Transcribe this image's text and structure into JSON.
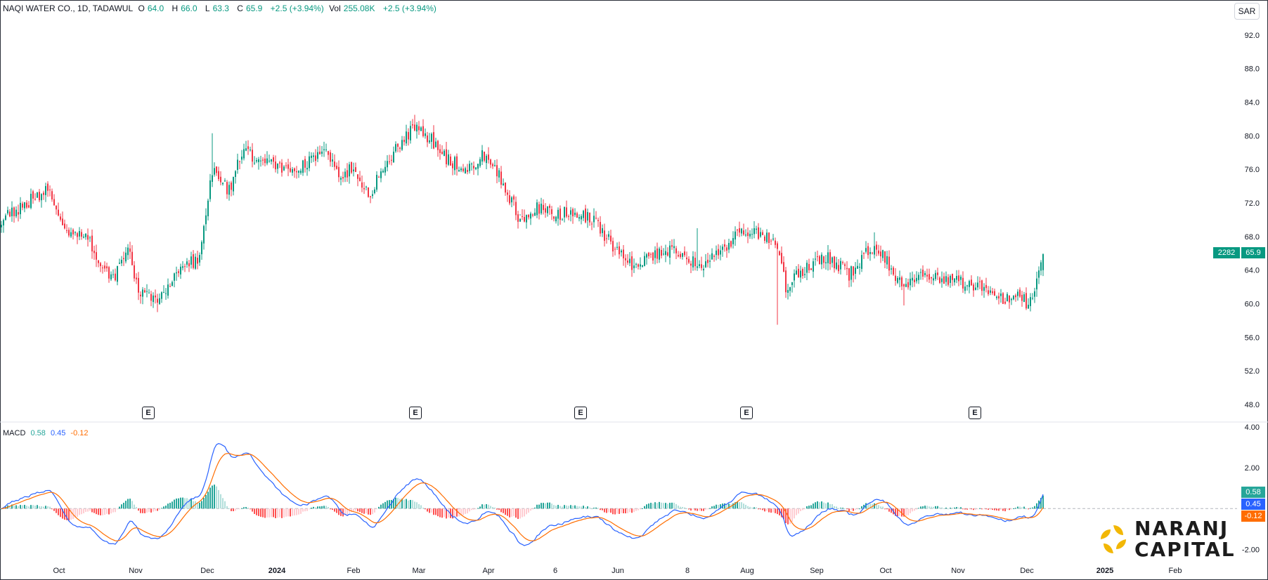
{
  "legend": {
    "title": "NAQI WATER CO., 1D, TADAWUL",
    "o_label": "O",
    "o_value": "64.0",
    "h_label": "H",
    "h_value": "66.0",
    "l_label": "L",
    "l_value": "63.3",
    "c_label": "C",
    "c_value": "65.9",
    "change": "+2.5 (+3.94%)",
    "vol_label": "Vol",
    "vol_value": "255.08K",
    "vol_change": "+2.5 (+3.94%)"
  },
  "currency": "SAR",
  "price_axis": [
    "92.0",
    "88.0",
    "84.0",
    "80.0",
    "76.0",
    "72.0",
    "68.0",
    "64.0",
    "60.0",
    "56.0",
    "52.0",
    "48.0"
  ],
  "macd_axis": [
    "4.00",
    "2.00",
    "-2.00"
  ],
  "time_axis": [
    "Oct",
    "Nov",
    "Dec",
    "2024",
    "Feb",
    "Mar",
    "Apr",
    "6",
    "Jun",
    "8",
    "Aug",
    "Sep",
    "Oct",
    "Nov",
    "Dec",
    "2025",
    "Feb"
  ],
  "earnings_marker": "E",
  "price_badges": {
    "countdown": "2282",
    "last": "65.9"
  },
  "macd_legend": {
    "label": "MACD",
    "hist": "0.58",
    "macd": "0.45",
    "signal": "-0.12"
  },
  "macd_badges": {
    "hist": "0.58",
    "macd": "0.45",
    "signal": "-0.12"
  },
  "logo": {
    "line1": "NARANJ",
    "line2": "CAPITAL"
  },
  "colors": {
    "up": "#089981",
    "down": "#f23645",
    "macd": "#2962ff",
    "signal": "#ff6d00",
    "hist_up": "#26a69a",
    "hist_up_light": "#b2dfdb",
    "hist_down": "#ff5252",
    "hist_down_light": "#ffcdd2",
    "logo_gold": "#f2b705"
  },
  "chart_data": {
    "type": "candlestick",
    "price_axis_range": [
      46.0,
      95.0
    ],
    "macd_axis_range": [
      -2.6,
      4.2
    ],
    "anchors_close": [
      [
        0,
        70.2
      ],
      [
        22,
        73.5
      ],
      [
        30,
        69
      ],
      [
        40,
        68
      ],
      [
        47,
        65
      ],
      [
        53,
        63
      ],
      [
        60,
        66.5
      ],
      [
        66,
        61
      ],
      [
        74,
        60.5
      ],
      [
        84,
        64
      ],
      [
        94,
        65.5
      ],
      [
        100,
        76
      ],
      [
        108,
        73.5
      ],
      [
        114,
        78
      ],
      [
        124,
        77
      ],
      [
        134,
        76
      ],
      [
        144,
        76.5
      ],
      [
        152,
        78.5
      ],
      [
        160,
        75.5
      ],
      [
        168,
        76
      ],
      [
        174,
        73
      ],
      [
        180,
        75.5
      ],
      [
        188,
        79
      ],
      [
        196,
        81
      ],
      [
        204,
        79.5
      ],
      [
        212,
        77
      ],
      [
        222,
        76
      ],
      [
        228,
        78
      ],
      [
        236,
        75.5
      ],
      [
        246,
        70
      ],
      [
        254,
        71.5
      ],
      [
        262,
        70.5
      ],
      [
        272,
        71
      ],
      [
        280,
        70
      ],
      [
        290,
        67
      ],
      [
        300,
        64.5
      ],
      [
        310,
        66
      ],
      [
        320,
        66.5
      ],
      [
        330,
        64.5
      ],
      [
        340,
        66
      ],
      [
        348,
        68
      ],
      [
        356,
        69
      ],
      [
        364,
        67.5
      ],
      [
        368,
        66.5
      ],
      [
        372,
        62
      ],
      [
        380,
        64
      ],
      [
        392,
        65.5
      ],
      [
        402,
        63.5
      ],
      [
        410,
        66
      ],
      [
        414,
        67
      ],
      [
        420,
        65
      ],
      [
        428,
        62
      ],
      [
        436,
        63
      ],
      [
        446,
        63.2
      ],
      [
        456,
        62.5
      ],
      [
        466,
        62
      ],
      [
        474,
        60.5
      ],
      [
        478,
        60.8
      ],
      [
        482,
        61.5
      ],
      [
        486,
        60.2
      ],
      [
        489,
        60.6
      ],
      [
        491,
        63
      ],
      [
        494,
        65.9
      ]
    ],
    "last": {
      "open": 64.0,
      "high": 66.0,
      "low": 63.3,
      "close": 65.9
    },
    "macd_current": {
      "macd": 0.45,
      "signal": -0.12,
      "hist": 0.58
    }
  }
}
